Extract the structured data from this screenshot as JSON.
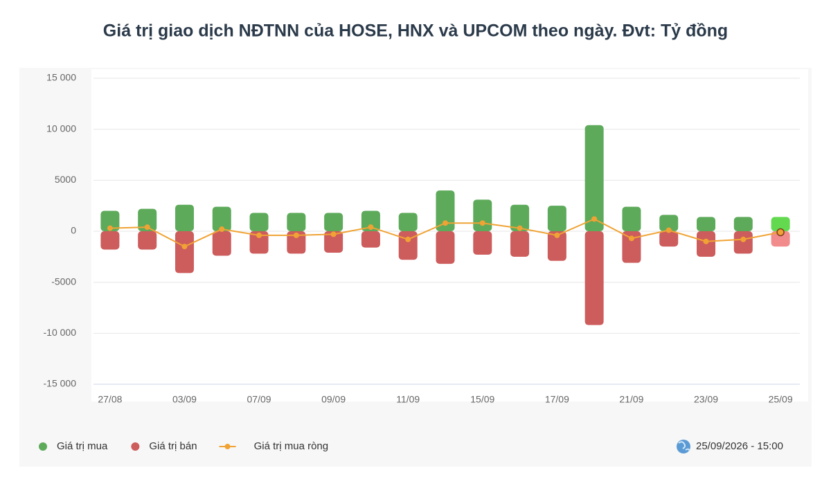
{
  "chart_data": {
    "type": "bar-line",
    "title": "Giá trị giao dịch NĐTNN của HOSE, HNX và UPCOM theo ngày. Đvt: Tỷ đồng",
    "categories": [
      "27/08",
      null,
      "03/09",
      null,
      "07/09",
      null,
      "09/09",
      null,
      "11/09",
      null,
      "15/09",
      null,
      "17/09",
      null,
      "21/09",
      null,
      "23/09",
      null,
      "25/09"
    ],
    "series": [
      {
        "name": "Giá trị mua",
        "type": "bar",
        "color": "#5daa5a",
        "latest_color": "#62d94f",
        "values": [
          2000,
          2200,
          2600,
          2400,
          1800,
          1800,
          1800,
          2000,
          1800,
          4000,
          3100,
          2600,
          2500,
          10400,
          2400,
          1600,
          1400,
          1400,
          1400
        ]
      },
      {
        "name": "Giá trị bán",
        "type": "bar",
        "color": "#cd5c5c",
        "latest_color": "#f28b8b",
        "values": [
          -1800,
          -1800,
          -4100,
          -2400,
          -2200,
          -2200,
          -2100,
          -1600,
          -2800,
          -3200,
          -2300,
          -2500,
          -2900,
          -9200,
          -3100,
          -1500,
          -2500,
          -2200,
          -1500
        ]
      },
      {
        "name": "Giá trị mua ròng",
        "type": "line",
        "color": "#f0a334",
        "values": [
          300,
          400,
          -1500,
          200,
          -400,
          -400,
          -300,
          400,
          -800,
          800,
          800,
          300,
          -400,
          1200,
          -700,
          100,
          -1000,
          -800,
          -100
        ]
      }
    ],
    "ylim": [
      -15000,
      15000
    ],
    "yticks": [
      {
        "value": -15000,
        "label": "-15 000"
      },
      {
        "value": -10000,
        "label": "-10 000"
      },
      -5000,
      0,
      5000,
      {
        "value": 10000,
        "label": "10 000"
      },
      {
        "value": 15000,
        "label": "15 000"
      }
    ],
    "grid": true,
    "timestamp": "25/09/2026 - 15:00"
  }
}
